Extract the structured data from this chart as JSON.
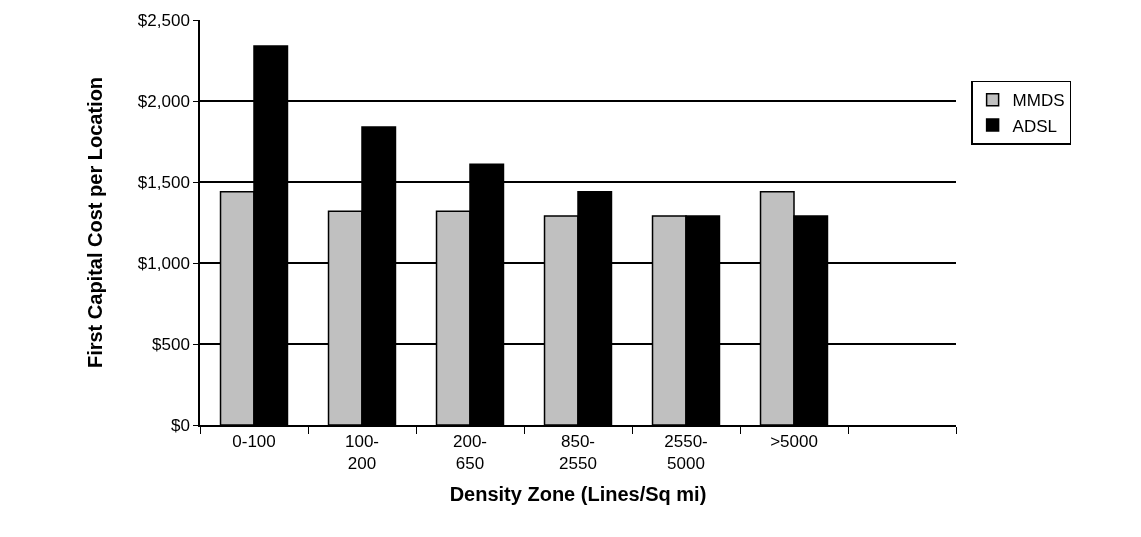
{
  "chart_data": {
    "type": "bar",
    "xlabel": "Density Zone (Lines/Sq mi)",
    "ylabel": "First Capital Cost per Location",
    "categories": [
      "0-100",
      "100-\n200",
      "200-\n650",
      "850-\n2550",
      "2550-\n5000",
      ">5000",
      null
    ],
    "series": [
      {
        "name": "MMDS",
        "color": "#c0c0c0",
        "values": [
          1440,
          1320,
          1320,
          1290,
          1290,
          1440,
          null
        ]
      },
      {
        "name": "ADSL",
        "color": "#000000",
        "values": [
          2340,
          1840,
          1610,
          1440,
          1290,
          1290,
          null
        ]
      }
    ],
    "ylim": [
      0,
      2500
    ],
    "yticks": [
      {
        "value": 0,
        "label": "$0"
      },
      {
        "value": 500,
        "label": "$500"
      },
      {
        "value": 1000,
        "label": "$1,000"
      },
      {
        "value": 1500,
        "label": "$1,500"
      },
      {
        "value": 2000,
        "label": "$2,000"
      },
      {
        "value": 2500,
        "label": "$2,500"
      }
    ],
    "grid": "y",
    "legend": "right"
  }
}
